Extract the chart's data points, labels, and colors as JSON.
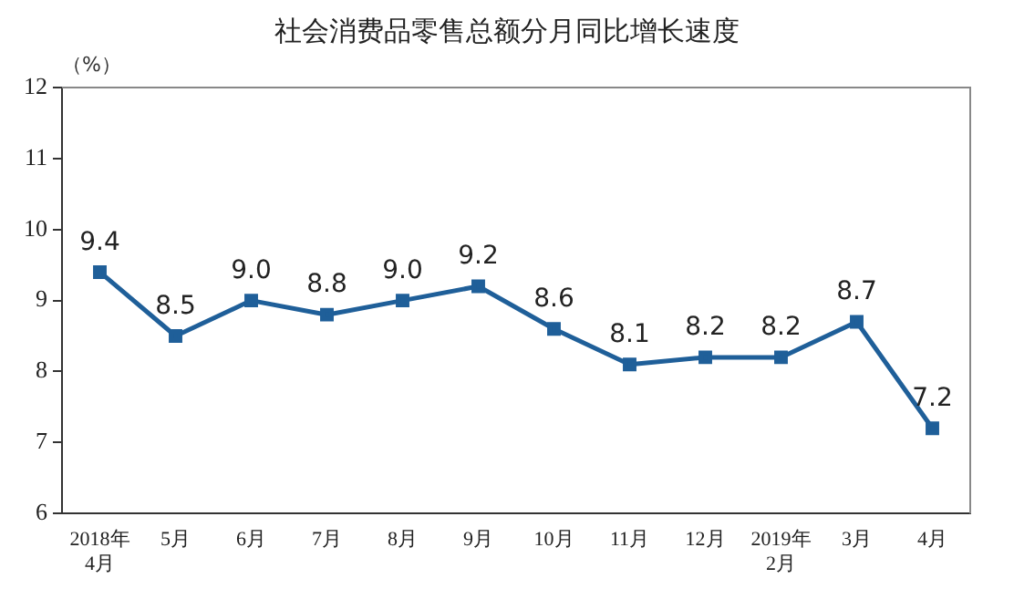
{
  "chart_data": {
    "type": "line",
    "title": "社会消费品零售总额分月同比增长速度",
    "ylabel": "（%）",
    "categories": [
      "2018年\n4月",
      "5月",
      "6月",
      "7月",
      "8月",
      "9月",
      "10月",
      "11月",
      "12月",
      "2019年\n2月",
      "3月",
      "4月"
    ],
    "series": [
      {
        "color": "#1f5f99",
        "values": [
          9.4,
          8.5,
          9.0,
          8.8,
          9.0,
          9.2,
          8.6,
          8.1,
          8.2,
          8.2,
          8.7,
          7.2
        ],
        "value_labels": [
          "9.4",
          "8.5",
          "9.0",
          "8.8",
          "9.0",
          "9.2",
          "8.6",
          "8.1",
          "8.2",
          "8.2",
          "8.7",
          "7.2"
        ]
      }
    ],
    "ylim": [
      6,
      12
    ],
    "yticks": [
      6,
      7,
      8,
      9,
      10,
      11,
      12
    ],
    "grid": false,
    "legend": false,
    "marker": "square",
    "line_style": "solid"
  }
}
